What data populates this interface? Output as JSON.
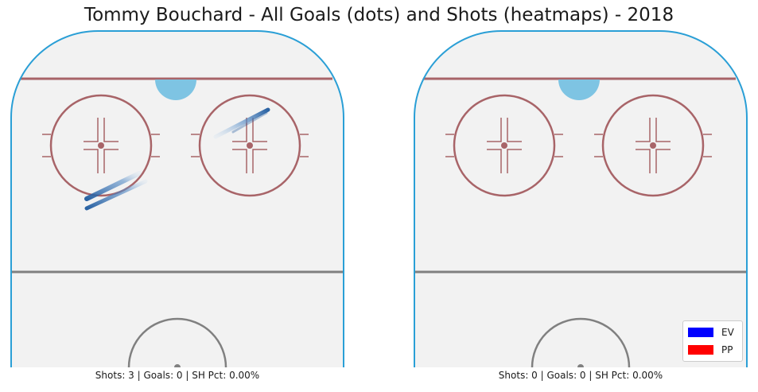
{
  "chart_data": {
    "type": "scatter",
    "title": "Tommy Bouchard - All Goals (dots) and Shots (heatmaps) - 2018",
    "panels": [
      {
        "caption": "Shots: 3 | Goals: 0 | SH Pct: 0.00%",
        "shots": 3,
        "goals": 0,
        "sh_pct": "0.00%"
      },
      {
        "caption": "Shots: 0 | Goals: 0 | SH Pct: 0.00%",
        "shots": 0,
        "goals": 0,
        "sh_pct": "0.00%"
      }
    ],
    "legend": {
      "placement": "bottom-right",
      "entries": [
        {
          "label": "EV",
          "color": "#0000ff"
        },
        {
          "label": "PP",
          "color": "#ff0000"
        }
      ]
    },
    "colors": {
      "ice": "#f2f2f2",
      "boards": "#2a9fd6",
      "red_line": "#a86468",
      "goal_crease": "#7ec4e3",
      "center_line": "#808080",
      "heatmap": "#1f5a9e"
    }
  }
}
